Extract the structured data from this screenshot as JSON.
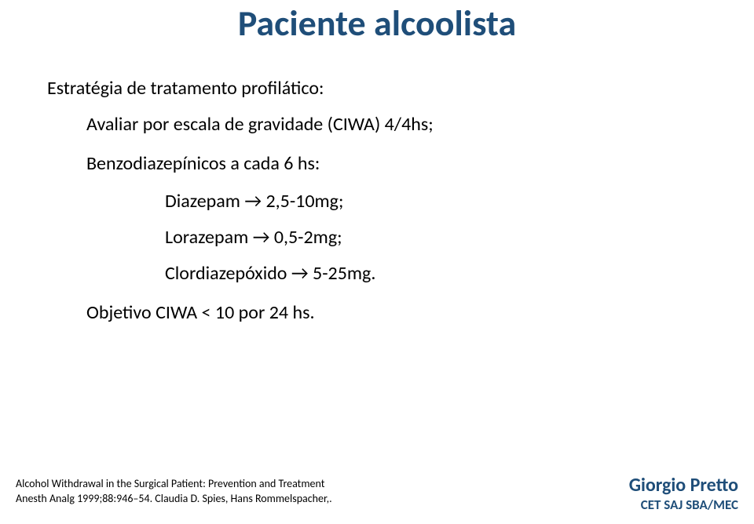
{
  "title": "Paciente alcoolista",
  "content": {
    "line1a": "Estratégia de tratamento profilático:",
    "line1b": "Avaliar por escala de gravidade (CIWA) 4/4hs;",
    "line2": "Benzodiazepínicos a cada 6 hs:",
    "drug1": "Diazepam → 2,5-10mg;",
    "drug2": "Lorazepam → 0,5-2mg;",
    "drug3": "Clordiazepóxido → 5-25mg.",
    "objective": "Objetivo CIWA < 10 por 24 hs."
  },
  "footer": {
    "ref1": "Alcohol Withdrawal in the Surgical Patient: Prevention and Treatment",
    "ref2": "Anesth Analg 1999;88:946–54. Claudia D. Spies, Hans Rommelspacher,."
  },
  "author": "Giorgio Pretto",
  "affiliation": "CET SAJ SBA/MEC",
  "colors": {
    "title_color": "#1f4e79",
    "text_color": "#000000",
    "author_color": "#1f4e79",
    "background": "#ffffff"
  }
}
